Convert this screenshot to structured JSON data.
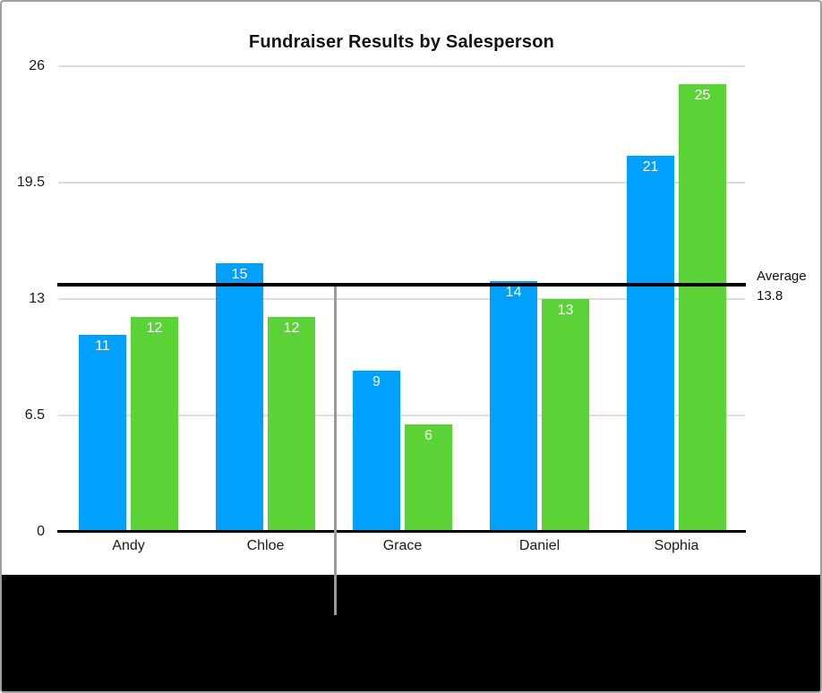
{
  "figure": {
    "type_hint": "apple-style help screenshot of a bar chart with average reference line and callout",
    "background_below_chart": "#000000",
    "frame_border_color": "#9e9e9e"
  },
  "chart_data": {
    "type": "bar",
    "title": "Fundraiser Results by Salesperson",
    "categories": [
      "Andy",
      "Chloe",
      "Grace",
      "Daniel",
      "Sophia"
    ],
    "series": [
      {
        "name": "series-blue",
        "color": "#00A1FC",
        "values": [
          11,
          15,
          9,
          14,
          21
        ]
      },
      {
        "name": "series-green",
        "color": "#5BD336",
        "values": [
          12,
          12,
          6,
          13,
          25
        ]
      }
    ],
    "value_labels": {
      "position": "inside-top",
      "color": "#ffffff"
    },
    "y_ticks": [
      0,
      6.5,
      13,
      19.5,
      26
    ],
    "ylim": [
      0,
      26
    ],
    "xlabel": "",
    "ylabel": "",
    "grid": true,
    "gridline_color": "#dcdcdc",
    "axis_color": "#000000",
    "legend": "none",
    "average_line": {
      "value": 13.8,
      "label": "Average",
      "value_label": "13.8",
      "color": "#000000"
    }
  }
}
